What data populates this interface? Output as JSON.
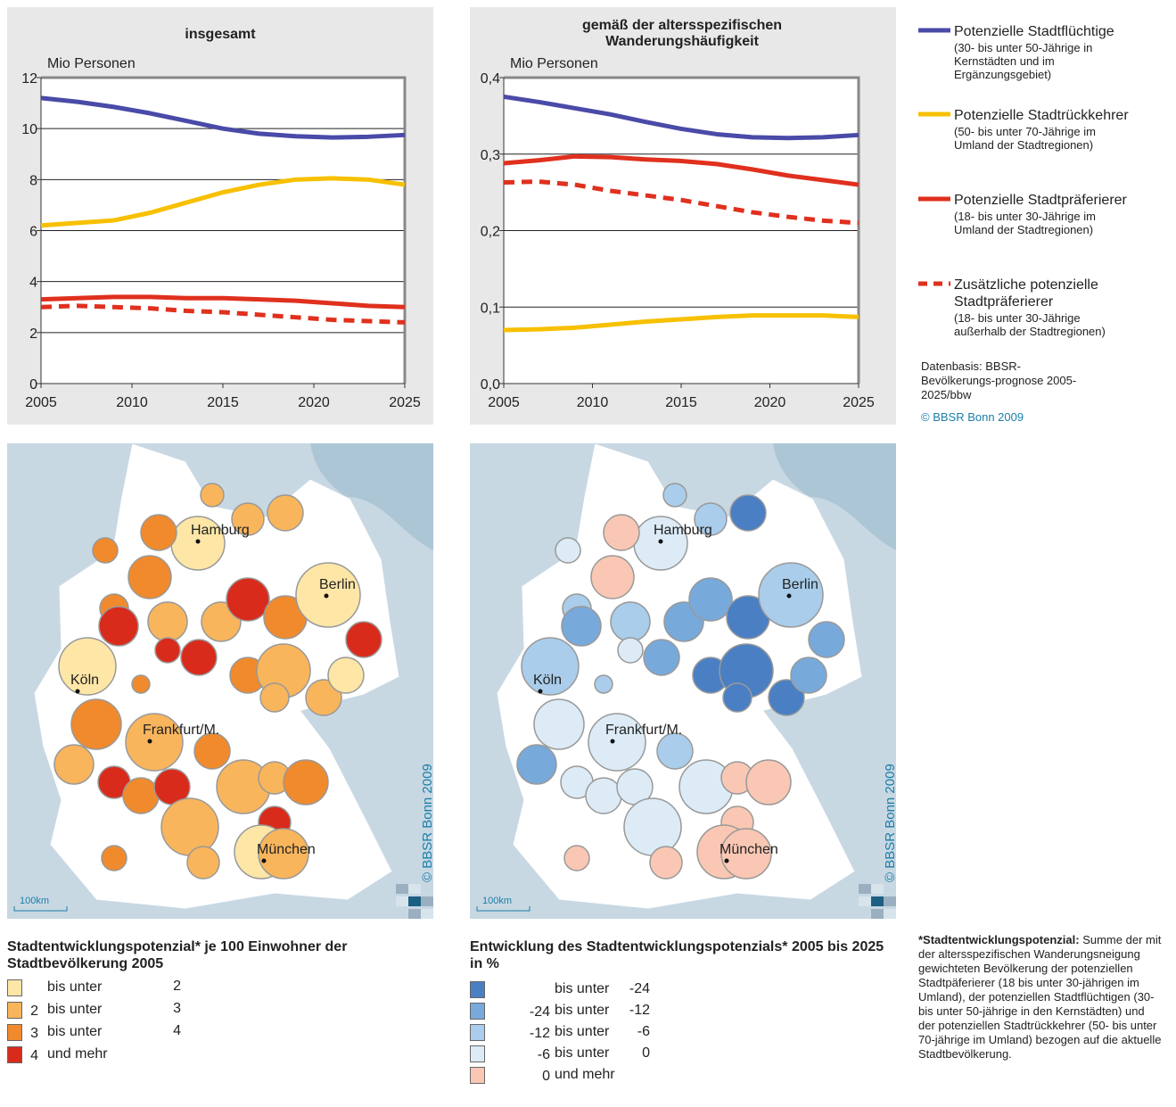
{
  "chart_data": [
    {
      "type": "line",
      "title": "insgesamt",
      "ylabel": "Mio Personen",
      "grid": true,
      "x": [
        2005,
        2007,
        2009,
        2011,
        2013,
        2015,
        2017,
        2019,
        2021,
        2023,
        2025
      ],
      "xlim": [
        2005,
        2025
      ],
      "xticks": [
        2005,
        2010,
        2015,
        2020,
        2025
      ],
      "ylim": [
        0,
        12
      ],
      "yticks": [
        0,
        2,
        4,
        6,
        8,
        10,
        12
      ],
      "series": [
        {
          "name": "Potenzielle Stadtflüchtige",
          "color": "#4a4aa8",
          "values": [
            11.2,
            11.05,
            10.85,
            10.6,
            10.3,
            10.0,
            9.8,
            9.7,
            9.65,
            9.68,
            9.75
          ]
        },
        {
          "name": "Potenzielle Stadtrückkehrer",
          "color": "#f7c000",
          "values": [
            6.2,
            6.3,
            6.4,
            6.7,
            7.1,
            7.5,
            7.8,
            8.0,
            8.05,
            8.0,
            7.8
          ]
        },
        {
          "name": "Potenzielle Stadtpräferierer",
          "color": "#e0301e",
          "values": [
            3.3,
            3.35,
            3.4,
            3.4,
            3.35,
            3.35,
            3.3,
            3.25,
            3.15,
            3.05,
            3.0
          ]
        },
        {
          "name": "Zusätzliche potenzielle Stadtpräferierer",
          "color": "#e0301e",
          "dashed": true,
          "values": [
            3.0,
            3.05,
            3.0,
            2.95,
            2.85,
            2.8,
            2.7,
            2.6,
            2.5,
            2.45,
            2.4
          ]
        }
      ]
    },
    {
      "type": "line",
      "title": "gemäß der altersspezifischen Wanderungshäufigkeit",
      "ylabel": "Mio Personen",
      "grid": true,
      "x": [
        2005,
        2007,
        2009,
        2011,
        2013,
        2015,
        2017,
        2019,
        2021,
        2023,
        2025
      ],
      "xlim": [
        2005,
        2025
      ],
      "xticks": [
        2005,
        2010,
        2015,
        2020,
        2025
      ],
      "ylim": [
        0,
        0.4
      ],
      "yticks": [
        {
          "value": 0,
          "label": "0,0"
        },
        {
          "value": 0.1,
          "label": "0,1"
        },
        {
          "value": 0.2,
          "label": "0,2"
        },
        {
          "value": 0.3,
          "label": "0,3"
        },
        {
          "value": 0.4,
          "label": "0,4"
        }
      ],
      "series": [
        {
          "name": "Potenzielle Stadtflüchtige",
          "color": "#4a4aa8",
          "values": [
            0.375,
            0.368,
            0.36,
            0.352,
            0.342,
            0.333,
            0.326,
            0.322,
            0.321,
            0.322,
            0.325
          ]
        },
        {
          "name": "Potenzielle Stadtrückkehrer",
          "color": "#f7c000",
          "values": [
            0.07,
            0.071,
            0.073,
            0.077,
            0.081,
            0.084,
            0.087,
            0.089,
            0.089,
            0.089,
            0.087
          ]
        },
        {
          "name": "Potenzielle Stadtpräferierer",
          "color": "#e0301e",
          "values": [
            0.288,
            0.292,
            0.297,
            0.296,
            0.293,
            0.291,
            0.287,
            0.28,
            0.272,
            0.266,
            0.26
          ]
        },
        {
          "name": "Zusätzliche potenzielle Stadtpräferierer",
          "color": "#e0301e",
          "dashed": true,
          "values": [
            0.263,
            0.264,
            0.26,
            0.252,
            0.246,
            0.24,
            0.232,
            0.224,
            0.218,
            0.213,
            0.21
          ]
        }
      ]
    }
  ],
  "legend_notes": [
    "(30- bis unter 50-Jährige in Kernstädten und im Ergänzungsgebiet)",
    "(50- bis unter 70-Jährige im Umland der Stadtregionen)",
    "(18- bis unter 30-Jährige im Umland der Stadtregionen)",
    "(18- bis unter 30-Jährige außerhalb der Stadtregionen)"
  ],
  "source": "Datenbasis: BBSR-Bevölkerungs-prognose 2005-2025/bbw",
  "copyright": "© BBSR Bonn 2009",
  "maps": {
    "cities": [
      "Hamburg",
      "Berlin",
      "Köln",
      "Frankfurt/M.",
      "München"
    ],
    "scale": "100km",
    "credit": "© BBSR Bonn 2009"
  },
  "map_legends": [
    {
      "title": "Stadtentwicklungspotenzial* je 100 Einwohner der Stadtbevölkerung 2005",
      "classes": [
        {
          "color": "#fde6a6",
          "text": "bis unter",
          "to": "2"
        },
        {
          "color": "#f9b55c",
          "from": "2",
          "text": "bis unter",
          "to": "3"
        },
        {
          "color": "#f08a2c",
          "from": "3",
          "text": "bis unter",
          "to": "4"
        },
        {
          "color": "#d92b1c",
          "from": "4",
          "text": "und mehr"
        }
      ]
    },
    {
      "title": "Entwicklung des Stadtentwicklungspotenzials* 2005 bis 2025 in %",
      "classes": [
        {
          "color": "#4a7fc4",
          "text": "bis unter",
          "to": "-24"
        },
        {
          "color": "#78a9db",
          "from": "-24",
          "text": "bis unter",
          "to": "-12"
        },
        {
          "color": "#a9cdea",
          "from": "-12",
          "text": "bis unter",
          "to": "-6"
        },
        {
          "color": "#dcebf6",
          "from": "-6",
          "text": "bis unter",
          "to": "0"
        },
        {
          "color": "#f9c7b3",
          "from": "0",
          "text": "und mehr"
        }
      ]
    }
  ],
  "footnote": {
    "term": "*Stadtentwicklungspotenzial:",
    "text": "Summe der mit der altersspezifischen Wanderungsneigung gewichteten Bevölkerung der potenziellen Stadtpäferierer (18 bis unter 30-jährigen im Umland), der potenziellen Stadtflüchtigen (30- bis unter 50-jährige in den Kernstädten) und der potenziellen Stadtrückkehrer (50- bis unter 70-jährige im Umland) bezogen auf die aktuelle Stadtbevölkerung."
  }
}
